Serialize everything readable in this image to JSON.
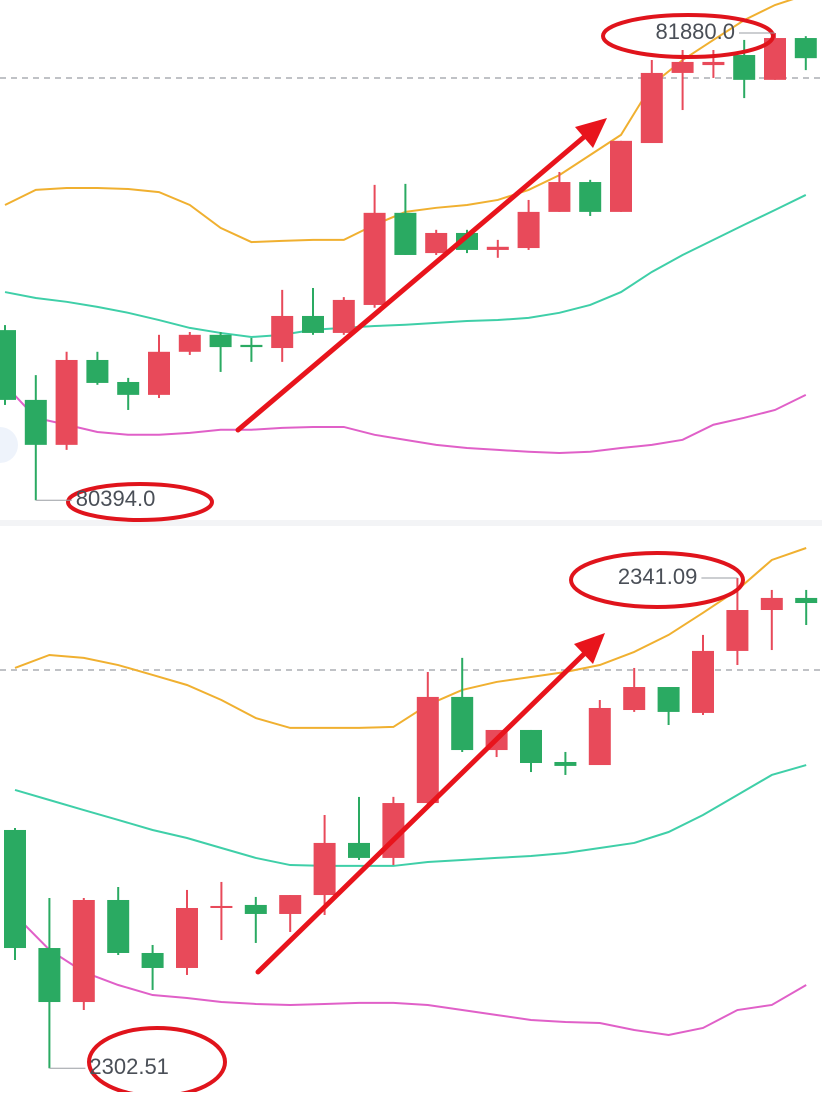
{
  "chart_data": [
    {
      "type": "candlestick",
      "up_color": "#e84a5a",
      "down_color": "#2aaa62",
      "ylim": [
        80331,
        81985
      ],
      "reference_line": 81737,
      "max_label": "81880.0",
      "min_label": "80394.0",
      "open": [
        80935,
        80713,
        80570,
        80840,
        80770,
        80729,
        80866,
        80920,
        80888,
        80878,
        80980,
        80926,
        81015,
        81308,
        81180,
        81244,
        81190,
        81196,
        81311,
        81406,
        81311,
        81530,
        81753,
        81778,
        81810,
        81731,
        81864
      ],
      "high": [
        80951,
        80792,
        80866,
        80866,
        80783,
        80920,
        80929,
        80929,
        80910,
        81063,
        81069,
        81040,
        81397,
        81400,
        81254,
        81254,
        81222,
        81349,
        81438,
        81413,
        81537,
        81794,
        81826,
        81826,
        81858,
        81880,
        81870
      ],
      "low": [
        80697,
        80394,
        80554,
        80761,
        80681,
        80719,
        80856,
        80802,
        80834,
        80834,
        80920,
        80920,
        81006,
        81174,
        81174,
        81180,
        81165,
        81190,
        81311,
        81298,
        81311,
        81530,
        81635,
        81737,
        81673,
        81731,
        81762
      ],
      "close": [
        80713,
        80570,
        80840,
        80767,
        80729,
        80866,
        80920,
        80881,
        80881,
        80980,
        80926,
        81031,
        81308,
        81174,
        81244,
        81190,
        81200,
        81311,
        81406,
        81311,
        81537,
        81753,
        81788,
        81788,
        81731,
        81864,
        81800
      ],
      "series": [
        {
          "color": "#f0b030",
          "values": [
            81333,
            81381,
            81387,
            81387,
            81384,
            81374,
            81333,
            81260,
            81215,
            81219,
            81222,
            81222,
            81270,
            81311,
            81324,
            81333,
            81349,
            81381,
            81428,
            81492,
            81556,
            81715,
            81794,
            81858,
            81921,
            81969,
            82001
          ]
        },
        {
          "color": "#3fcfa8",
          "values": [
            81056,
            81037,
            81025,
            81009,
            80990,
            80967,
            80942,
            80926,
            80913,
            80920,
            80936,
            80942,
            80948,
            80952,
            80958,
            80964,
            80967,
            80974,
            80990,
            81015,
            81056,
            81120,
            81174,
            81222,
            81270,
            81317,
            81365
          ]
        },
        {
          "color": "#e060c8",
          "values": [
            80761,
            80656,
            80634,
            80611,
            80602,
            80602,
            80608,
            80618,
            80618,
            80624,
            80627,
            80627,
            80602,
            80586,
            80570,
            80560,
            80554,
            80548,
            80544,
            80548,
            80560,
            80570,
            80586,
            80634,
            80656,
            80681,
            80729
          ]
        }
      ]
    },
    {
      "type": "candlestick",
      "up_color": "#e84a5a",
      "down_color": "#2aaa62",
      "ylim": [
        2300.64,
        2345.26
      ],
      "reference_line": 2333.85,
      "max_label": "2341.09",
      "min_label": "2302.51",
      "open": [
        2321.26,
        2311.97,
        2307.72,
        2315.75,
        2311.58,
        2310.4,
        2315.12,
        2315.36,
        2314.65,
        2316.14,
        2320.24,
        2319.06,
        2323.38,
        2331.73,
        2327.55,
        2329.13,
        2326.61,
        2326.37,
        2330.7,
        2332.51,
        2330.47,
        2335.35,
        2338.57,
        2339.52
      ],
      "high": [
        2321.42,
        2315.91,
        2315.91,
        2316.77,
        2312.21,
        2316.54,
        2317.17,
        2315.99,
        2316.14,
        2322.44,
        2323.86,
        2323.86,
        2333.69,
        2334.8,
        2329.13,
        2329.13,
        2327.4,
        2331.49,
        2334.01,
        2332.51,
        2336.61,
        2341.09,
        2340.15,
        2340.15
      ],
      "low": [
        2311.03,
        2302.51,
        2307.09,
        2311.42,
        2308.67,
        2309.85,
        2312.6,
        2312.37,
        2313.23,
        2314.57,
        2318.9,
        2318.5,
        2323.23,
        2327.4,
        2327.0,
        2325.82,
        2325.59,
        2326.37,
        2330.55,
        2329.52,
        2330.31,
        2334.24,
        2335.42,
        2337.39
      ],
      "close": [
        2311.97,
        2307.72,
        2315.75,
        2311.58,
        2310.4,
        2315.12,
        2315.28,
        2314.65,
        2316.14,
        2320.24,
        2319.06,
        2323.38,
        2331.73,
        2327.55,
        2329.13,
        2326.53,
        2326.3,
        2330.86,
        2332.51,
        2330.55,
        2335.35,
        2338.57,
        2339.52,
        2339.12
      ],
      "series": [
        {
          "color": "#f0b030",
          "values": [
            2334.01,
            2335.03,
            2334.8,
            2334.24,
            2333.46,
            2332.67,
            2331.49,
            2330.07,
            2329.29,
            2329.29,
            2329.29,
            2329.37,
            2331.1,
            2332.28,
            2332.91,
            2333.3,
            2333.69,
            2334.24,
            2335.27,
            2336.61,
            2338.35,
            2340.15,
            2342.51,
            2343.45
          ]
        },
        {
          "color": "#3fcfa8",
          "values": [
            2324.41,
            2323.62,
            2322.83,
            2322.05,
            2321.26,
            2320.63,
            2319.84,
            2319.06,
            2318.5,
            2318.43,
            2318.43,
            2318.43,
            2318.74,
            2318.9,
            2319.06,
            2319.21,
            2319.45,
            2319.84,
            2320.24,
            2321.1,
            2322.44,
            2324.01,
            2325.59,
            2326.37
          ]
        },
        {
          "color": "#e060c8",
          "values": [
            2314.57,
            2311.83,
            2310.08,
            2309.06,
            2308.27,
            2308.04,
            2307.72,
            2307.57,
            2307.49,
            2307.57,
            2307.65,
            2307.65,
            2307.49,
            2307.09,
            2306.7,
            2306.31,
            2306.15,
            2306.07,
            2305.52,
            2305.13,
            2305.68,
            2307.09,
            2307.49,
            2309.06
          ]
        }
      ]
    }
  ]
}
